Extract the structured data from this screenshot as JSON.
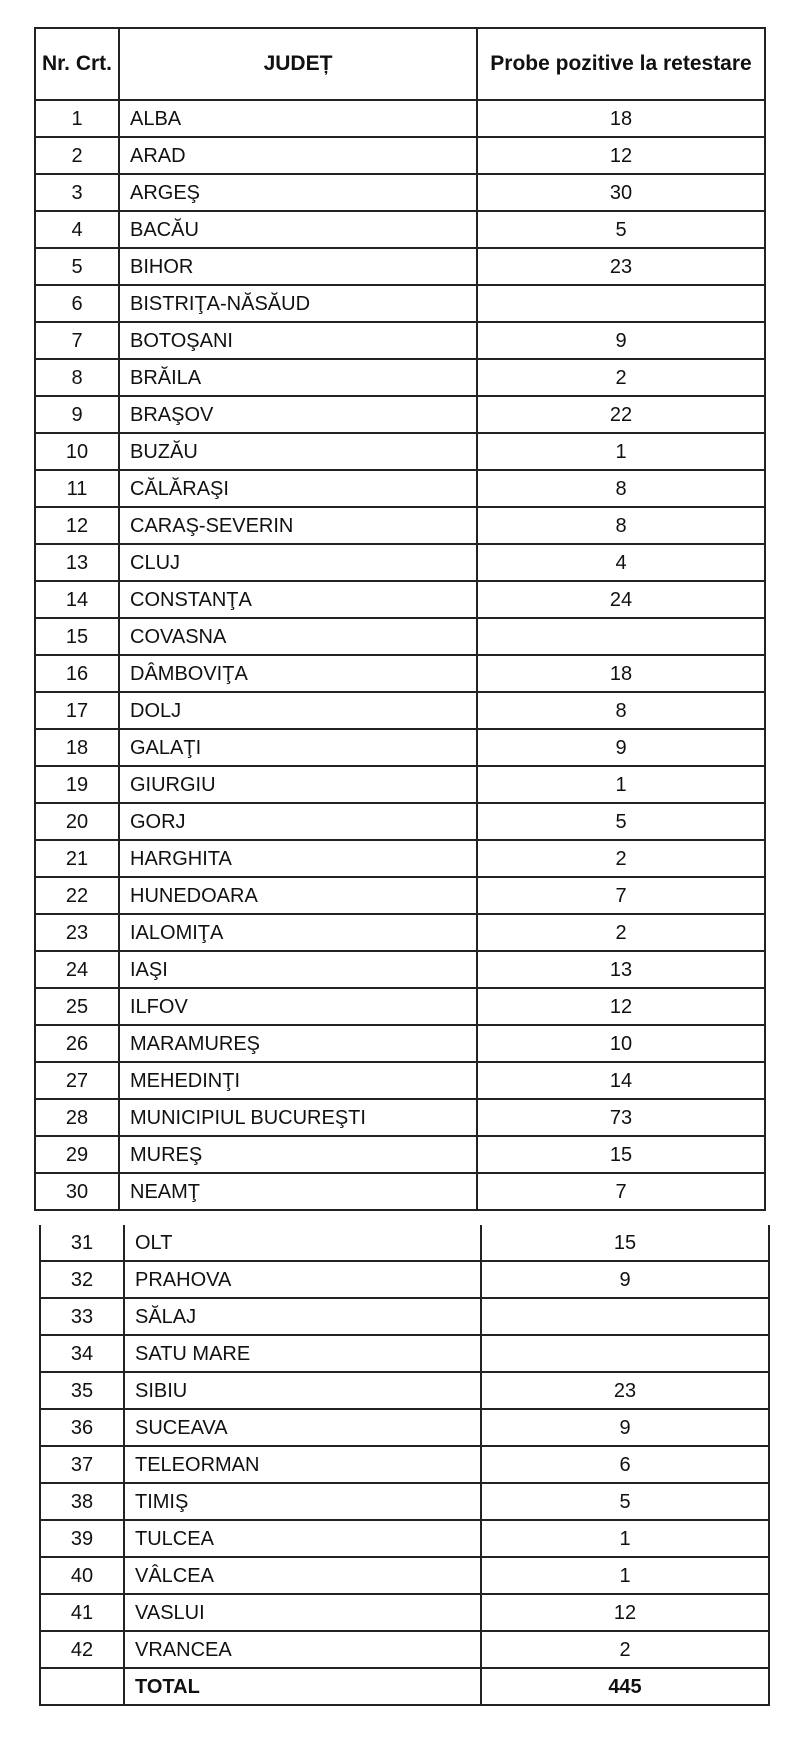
{
  "header": {
    "nr": "Nr. Crt.",
    "judet": "JUDEȚ",
    "probe": "Probe pozitive la retestare"
  },
  "rows": [
    {
      "nr": "1",
      "judet": "ALBA",
      "value": "18"
    },
    {
      "nr": "2",
      "judet": "ARAD",
      "value": "12"
    },
    {
      "nr": "3",
      "judet": "ARGEŞ",
      "value": "30"
    },
    {
      "nr": "4",
      "judet": "BACĂU",
      "value": "5"
    },
    {
      "nr": "5",
      "judet": "BIHOR",
      "value": "23"
    },
    {
      "nr": "6",
      "judet": "BISTRIŢA-NĂSĂUD",
      "value": ""
    },
    {
      "nr": "7",
      "judet": "BOTOŞANI",
      "value": "9"
    },
    {
      "nr": "8",
      "judet": "BRĂILA",
      "value": "2"
    },
    {
      "nr": "9",
      "judet": "BRAŞOV",
      "value": "22"
    },
    {
      "nr": "10",
      "judet": "BUZĂU",
      "value": "1"
    },
    {
      "nr": "11",
      "judet": "CĂLĂRAŞI",
      "value": "8"
    },
    {
      "nr": "12",
      "judet": "CARAŞ-SEVERIN",
      "value": "8"
    },
    {
      "nr": "13",
      "judet": "CLUJ",
      "value": "4"
    },
    {
      "nr": "14",
      "judet": "CONSTANŢA",
      "value": "24"
    },
    {
      "nr": "15",
      "judet": "COVASNA",
      "value": ""
    },
    {
      "nr": "16",
      "judet": "DÂMBOVIŢA",
      "value": "18"
    },
    {
      "nr": "17",
      "judet": "DOLJ",
      "value": "8"
    },
    {
      "nr": "18",
      "judet": "GALAŢI",
      "value": "9"
    },
    {
      "nr": "19",
      "judet": "GIURGIU",
      "value": "1"
    },
    {
      "nr": "20",
      "judet": "GORJ",
      "value": "5"
    },
    {
      "nr": "21",
      "judet": "HARGHITA",
      "value": "2"
    },
    {
      "nr": "22",
      "judet": "HUNEDOARA",
      "value": "7"
    },
    {
      "nr": "23",
      "judet": "IALOMIŢA",
      "value": "2"
    },
    {
      "nr": "24",
      "judet": "IAŞI",
      "value": "13"
    },
    {
      "nr": "25",
      "judet": "ILFOV",
      "value": "12"
    },
    {
      "nr": "26",
      "judet": "MARAMUREŞ",
      "value": "10"
    },
    {
      "nr": "27",
      "judet": "MEHEDINŢI",
      "value": "14"
    },
    {
      "nr": "28",
      "judet": "MUNICIPIUL BUCUREŞTI",
      "value": "73"
    },
    {
      "nr": "29",
      "judet": "MUREŞ",
      "value": "15"
    },
    {
      "nr": "30",
      "judet": "NEAMŢ",
      "value": "7"
    },
    {
      "nr": "31",
      "judet": "OLT",
      "value": "15"
    },
    {
      "nr": "32",
      "judet": "PRAHOVA",
      "value": "9"
    },
    {
      "nr": "33",
      "judet": "SĂLAJ",
      "value": ""
    },
    {
      "nr": "34",
      "judet": "SATU MARE",
      "value": ""
    },
    {
      "nr": "35",
      "judet": "SIBIU",
      "value": "23"
    },
    {
      "nr": "36",
      "judet": "SUCEAVA",
      "value": "9"
    },
    {
      "nr": "37",
      "judet": "TELEORMAN",
      "value": "6"
    },
    {
      "nr": "38",
      "judet": "TIMIŞ",
      "value": "5"
    },
    {
      "nr": "39",
      "judet": "TULCEA",
      "value": "1"
    },
    {
      "nr": "40",
      "judet": "VÂLCEA",
      "value": "1"
    },
    {
      "nr": "41",
      "judet": "VASLUI",
      "value": "12"
    },
    {
      "nr": "42",
      "judet": "VRANCEA",
      "value": "2"
    }
  ],
  "total": {
    "label": "TOTAL",
    "value": "445"
  }
}
